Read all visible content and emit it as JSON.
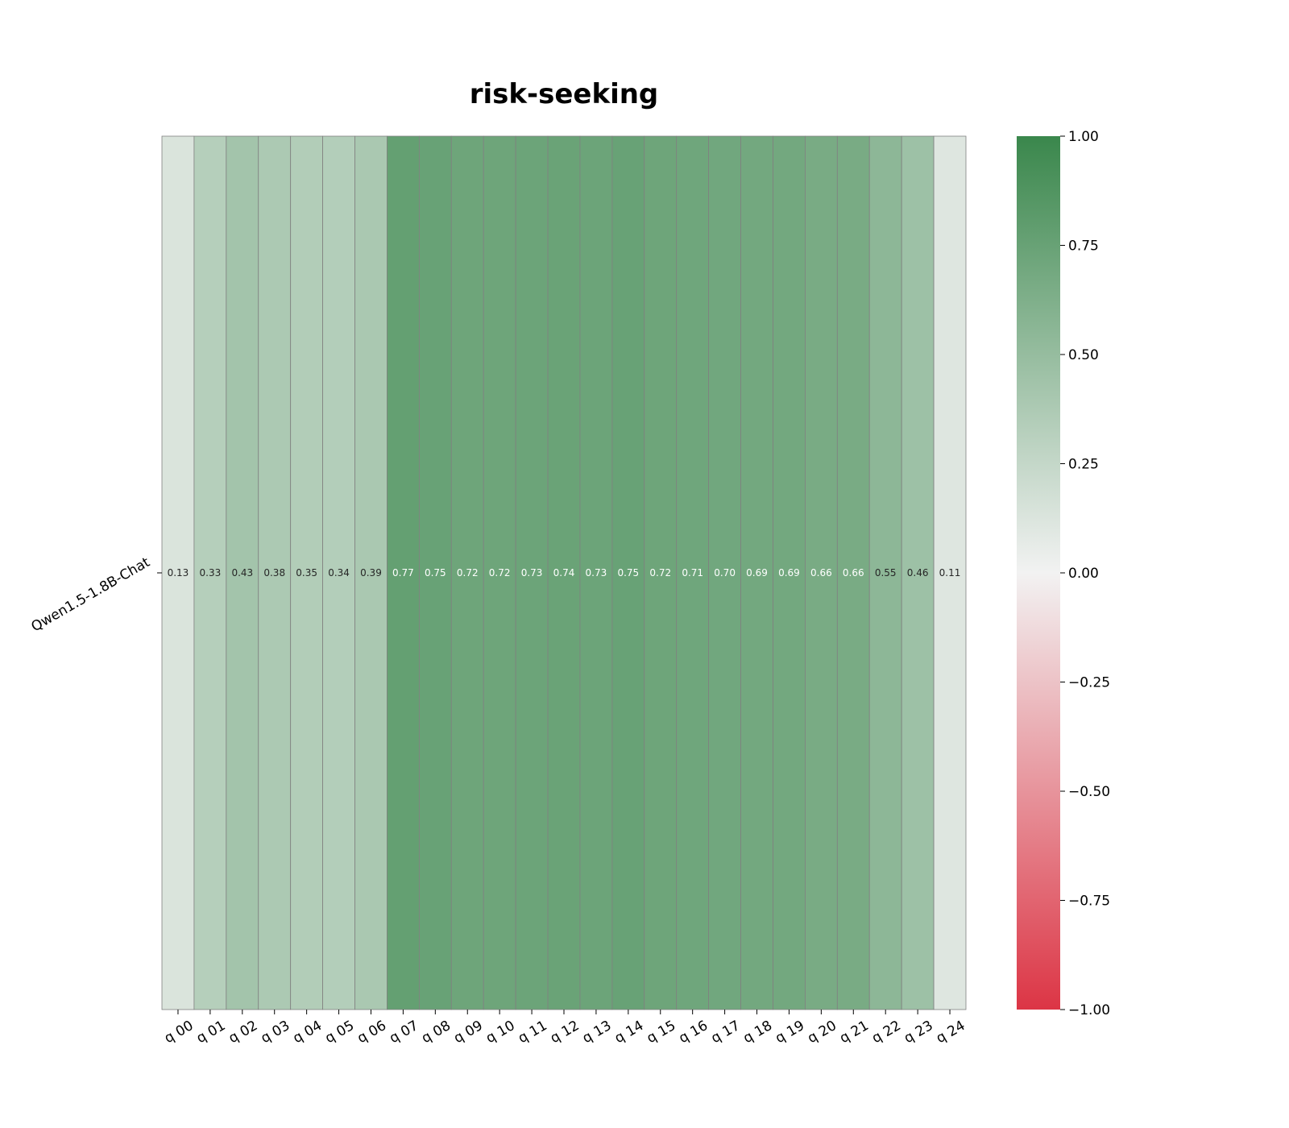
{
  "chart_data": {
    "type": "heatmap",
    "title": "risk-seeking",
    "rows": [
      "Qwen1.5-1.8B-Chat"
    ],
    "columns": [
      "q 00",
      "q 01",
      "q 02",
      "q 03",
      "q 04",
      "q 05",
      "q 06",
      "q 07",
      "q 08",
      "q 09",
      "q 10",
      "q 11",
      "q 12",
      "q 13",
      "q 14",
      "q 15",
      "q 16",
      "q 17",
      "q 18",
      "q 19",
      "q 20",
      "q 21",
      "q 22",
      "q 23",
      "q 24"
    ],
    "values": [
      [
        0.13,
        0.33,
        0.43,
        0.38,
        0.35,
        0.34,
        0.39,
        0.77,
        0.75,
        0.72,
        0.72,
        0.73,
        0.74,
        0.73,
        0.75,
        0.72,
        0.71,
        0.7,
        0.69,
        0.69,
        0.66,
        0.66,
        0.55,
        0.46,
        0.11
      ]
    ],
    "value_labels": [
      [
        "0.13",
        "0.33",
        "0.43",
        "0.38",
        "0.35",
        "0.34",
        "0.39",
        "0.77",
        "0.75",
        "0.72",
        "0.72",
        "0.73",
        "0.74",
        "0.73",
        "0.75",
        "0.72",
        "0.71",
        "0.70",
        "0.69",
        "0.69",
        "0.66",
        "0.66",
        "0.55",
        "0.46",
        "0.11"
      ]
    ],
    "colorbar": {
      "vmin": -1.0,
      "vmax": 1.0,
      "ticks": [
        "1.00",
        "0.75",
        "0.50",
        "0.25",
        "0.00",
        "−0.25",
        "−0.50",
        "−0.75",
        "−1.00"
      ],
      "tick_values": [
        1.0,
        0.75,
        0.5,
        0.25,
        0.0,
        -0.25,
        -0.5,
        -0.75,
        -1.0
      ],
      "colors": {
        "negative": "#dc3545",
        "center": "#f2f2f2",
        "positive": "#3a874c"
      }
    },
    "text_colors": {
      "light": "#ffffff",
      "dark": "#262626"
    },
    "grid": true,
    "legend": "right colorbar"
  }
}
